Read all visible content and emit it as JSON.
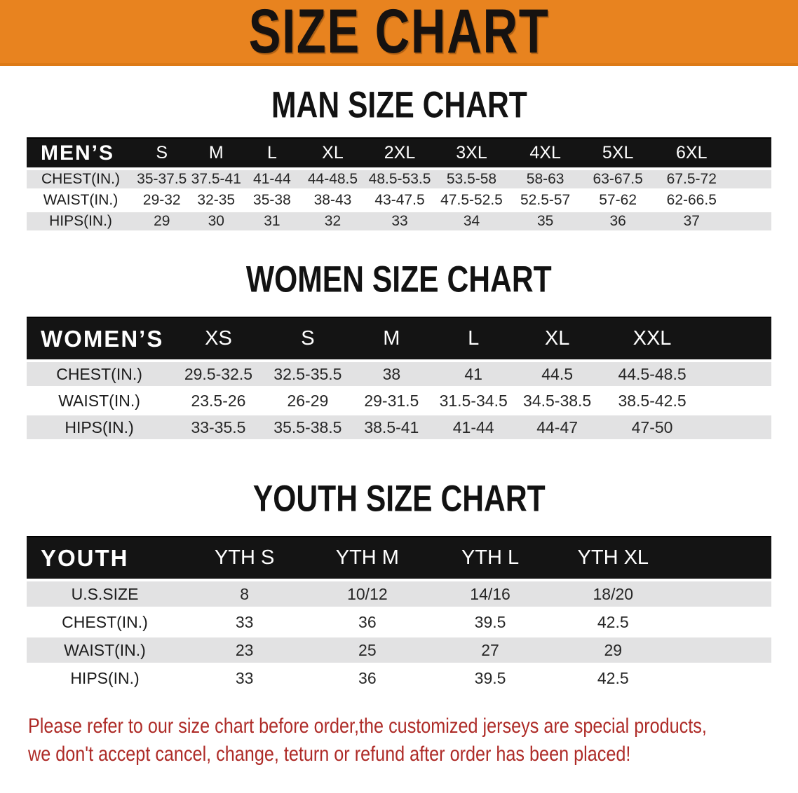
{
  "banner": {
    "title": "SIZE CHART"
  },
  "colors": {
    "banner_orange": "#e8831f",
    "header_black": "#141414",
    "row_gray": "#e2e2e3",
    "note_red": "#ae2b27"
  },
  "sections": [
    {
      "id": "men",
      "heading": "MAN SIZE CHART",
      "corner_label": "MEN’S",
      "sizes": [
        "S",
        "M",
        "L",
        "XL",
        "2XL",
        "3XL",
        "4XL",
        "5XL",
        "6XL"
      ],
      "rows": [
        {
          "label": "CHEST(IN.)",
          "values": [
            "35-37.5",
            "37.5-41",
            "41-44",
            "44-48.5",
            "48.5-53.5",
            "53.5-58",
            "58-63",
            "63-67.5",
            "67.5-72"
          ]
        },
        {
          "label": "WAIST(IN.)",
          "values": [
            "29-32",
            "32-35",
            "35-38",
            "38-43",
            "43-47.5",
            "47.5-52.5",
            "52.5-57",
            "57-62",
            "62-66.5"
          ]
        },
        {
          "label": "HIPS(IN.)",
          "values": [
            "29",
            "30",
            "31",
            "32",
            "33",
            "34",
            "35",
            "36",
            "37"
          ]
        }
      ]
    },
    {
      "id": "women",
      "heading": "WOMEN SIZE CHART",
      "corner_label": "WOMEN’S",
      "sizes": [
        "XS",
        "S",
        "M",
        "L",
        "XL",
        "XXL"
      ],
      "rows": [
        {
          "label": "CHEST(IN.)",
          "values": [
            "29.5-32.5",
            "32.5-35.5",
            "38",
            "41",
            "44.5",
            "44.5-48.5"
          ]
        },
        {
          "label": "WAIST(IN.)",
          "values": [
            "23.5-26",
            "26-29",
            "29-31.5",
            "31.5-34.5",
            "34.5-38.5",
            "38.5-42.5"
          ]
        },
        {
          "label": "HIPS(IN.)",
          "values": [
            "33-35.5",
            "35.5-38.5",
            "38.5-41",
            "41-44",
            "44-47",
            "47-50"
          ]
        }
      ]
    },
    {
      "id": "youth",
      "heading": "YOUTH SIZE CHART",
      "corner_label": "YOUTH",
      "sizes": [
        "YTH S",
        "YTH M",
        "YTH L",
        "YTH XL"
      ],
      "rows": [
        {
          "label": "U.S.SIZE",
          "values": [
            "8",
            "10/12",
            "14/16",
            "18/20"
          ]
        },
        {
          "label": "CHEST(IN.)",
          "values": [
            "33",
            "36",
            "39.5",
            "42.5"
          ]
        },
        {
          "label": "WAIST(IN.)",
          "values": [
            "23",
            "25",
            "27",
            "29"
          ]
        },
        {
          "label": "HIPS(IN.)",
          "values": [
            "33",
            "36",
            "39.5",
            "42.5"
          ]
        }
      ]
    }
  ],
  "footer": {
    "line1": "Please refer to our size chart before order,the customized jerseys are special products,",
    "line2": "we don't accept cancel, change, teturn or refund after order has been placed!"
  }
}
